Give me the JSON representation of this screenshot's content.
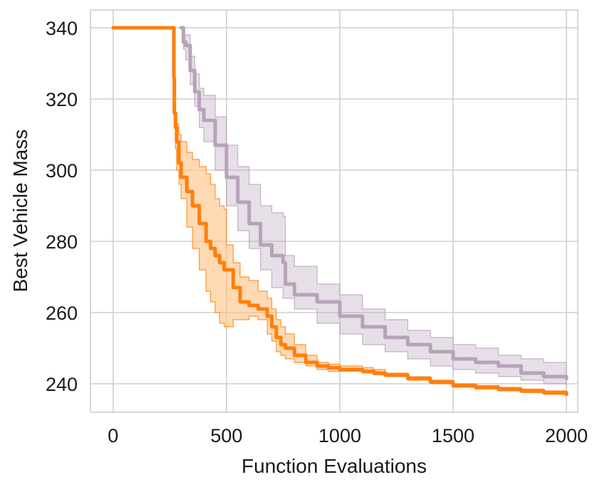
{
  "chart_data": {
    "type": "line",
    "title": "",
    "xlabel": "Function Evaluations",
    "ylabel": "Best Vehicle Mass",
    "xlim": [
      -100,
      2050
    ],
    "ylim": [
      232,
      345
    ],
    "xticks": [
      0,
      500,
      1000,
      1500,
      2000
    ],
    "xtick_labels": [
      "0",
      "500",
      "1000",
      "1500",
      "2000"
    ],
    "yticks": [
      240,
      260,
      280,
      300,
      320,
      340
    ],
    "ytick_labels": [
      "240",
      "260",
      "280",
      "300",
      "320",
      "340"
    ],
    "grid": true,
    "legend": "none",
    "series": [
      {
        "color": "#b7a3b9",
        "band_color": "#b7a3b9",
        "x": [
          300,
          310,
          320,
          340,
          360,
          380,
          400,
          450,
          500,
          550,
          600,
          650,
          700,
          750,
          760,
          800,
          900,
          1000,
          1100,
          1200,
          1300,
          1400,
          1500,
          1600,
          1700,
          1800,
          1900,
          2000
        ],
        "y": [
          340,
          336,
          335,
          328,
          322,
          317,
          314,
          307,
          298,
          291,
          285,
          279,
          276,
          274,
          268,
          265,
          263,
          259,
          256,
          253,
          251,
          249,
          247,
          246,
          245,
          243,
          242,
          241.5
        ],
        "lower": [
          340,
          334,
          331,
          324,
          318,
          312,
          308,
          300,
          290,
          283,
          278,
          272,
          267,
          264,
          264,
          261,
          257,
          254,
          251,
          249,
          247,
          245,
          244,
          243,
          242,
          241,
          240,
          239
        ],
        "upper": [
          340,
          338,
          338,
          332,
          327,
          323,
          321,
          315,
          307,
          301,
          296,
          290,
          288,
          287,
          276,
          273,
          268,
          265,
          261,
          258,
          255,
          253,
          251,
          250,
          248,
          247,
          246,
          245
        ]
      },
      {
        "color": "#ff7f0e",
        "band_color": "#ffbf80",
        "x": [
          0,
          265,
          268,
          270,
          275,
          280,
          290,
          300,
          325,
          350,
          380,
          410,
          430,
          450,
          470,
          490,
          500,
          530,
          560,
          600,
          640,
          680,
          700,
          720,
          740,
          760,
          800,
          850,
          900,
          950,
          1000,
          1050,
          1100,
          1150,
          1200,
          1300,
          1400,
          1500,
          1600,
          1700,
          1800,
          1900,
          2000
        ],
        "y": [
          340,
          340,
          326,
          316,
          312,
          308,
          302,
          298,
          294,
          290,
          285,
          280,
          278,
          276,
          274,
          272,
          272,
          267,
          263,
          262,
          261,
          259,
          256,
          253,
          251,
          250,
          248,
          246,
          245,
          244.5,
          244,
          244,
          243.5,
          243,
          242.5,
          241.5,
          240.5,
          239.5,
          239,
          238.5,
          238,
          237.5,
          237
        ],
        "lower": [
          340,
          340,
          324,
          312,
          306,
          300,
          296,
          292,
          284,
          278,
          272,
          266,
          263,
          260,
          257,
          256,
          256,
          258,
          258,
          259,
          258,
          254,
          252,
          249,
          248,
          247,
          246,
          245,
          244,
          243.5,
          243.5,
          243.5,
          243,
          242.5,
          242,
          241,
          240,
          239,
          238.5,
          238,
          237.5,
          237,
          236.5
        ],
        "upper": [
          340,
          340,
          328,
          320,
          316,
          313,
          310,
          308,
          305,
          303,
          301,
          299,
          296,
          292,
          290,
          289,
          279,
          274,
          270,
          269,
          266,
          264,
          261,
          258,
          256,
          254,
          251,
          248,
          246,
          245.5,
          245,
          245,
          244.5,
          244,
          243,
          242,
          241,
          240,
          239.5,
          239,
          238.5,
          238,
          237.5
        ]
      }
    ]
  }
}
